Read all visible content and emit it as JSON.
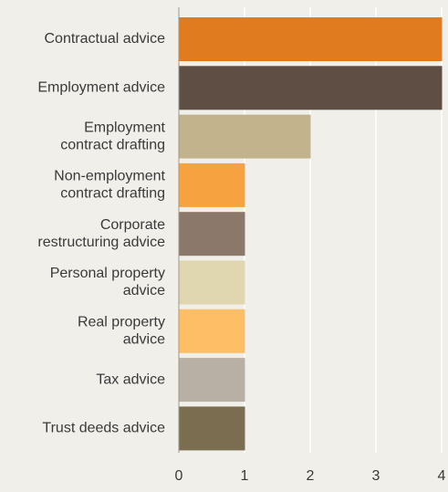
{
  "chart_data": {
    "type": "bar",
    "orientation": "horizontal",
    "categories": [
      [
        "Contractual advice"
      ],
      [
        "Employment advice"
      ],
      [
        "Employment",
        "contract drafting"
      ],
      [
        "Non-employment",
        "contract drafting"
      ],
      [
        "Corporate",
        "restructuring advice"
      ],
      [
        "Personal property",
        "advice"
      ],
      [
        "Real property",
        "advice"
      ],
      [
        "Tax advice"
      ],
      [
        "Trust deeds advice"
      ]
    ],
    "values": [
      4,
      4,
      2,
      1,
      1,
      1,
      1,
      1,
      1
    ],
    "colors": [
      "#e07b20",
      "#5e4e43",
      "#c2b38c",
      "#f6a240",
      "#8b786a",
      "#e0d6b0",
      "#fdbe66",
      "#b8b0a4",
      "#7a6d50"
    ],
    "xlim": [
      0,
      4
    ],
    "xticks": [
      0,
      1,
      2,
      3,
      4
    ],
    "grid": "vertical",
    "title": "",
    "xlabel": "",
    "ylabel": ""
  }
}
